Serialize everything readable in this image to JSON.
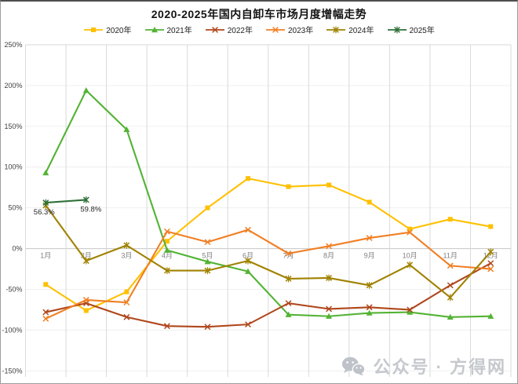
{
  "page": {
    "watermark_text": "公众号 · 方得网"
  },
  "chart_data": {
    "type": "line",
    "title": "2020-2025年国内自卸车市场月度增幅走势",
    "xlabel": "",
    "ylabel": "",
    "legend_position": "top",
    "grid": "vertical-major",
    "ylim": [
      -150,
      250
    ],
    "y_ticks": [
      "250%",
      "200%",
      "150%",
      "100%",
      "50%",
      "0%",
      "-50%",
      "-100%",
      "-150%"
    ],
    "y_tick_values": [
      250,
      200,
      150,
      100,
      50,
      0,
      -50,
      -100,
      -150
    ],
    "categories": [
      "1月",
      "2月",
      "3月",
      "4月",
      "5月",
      "6月",
      "7月",
      "8月",
      "9月",
      "10月",
      "11月",
      "12月"
    ],
    "series": [
      {
        "name": "2020年",
        "color": "#FFC000",
        "marker": "square",
        "values": [
          -44,
          -76,
          -53,
          9,
          50,
          86,
          76,
          78,
          57,
          24,
          36,
          27
        ]
      },
      {
        "name": "2021年",
        "color": "#53B334",
        "marker": "triangle",
        "values": [
          93,
          194,
          146,
          -2,
          -16,
          -28,
          -81,
          -83,
          -79,
          -78,
          -84,
          -83
        ]
      },
      {
        "name": "2022年",
        "color": "#B0471C",
        "marker": "x",
        "values": [
          -78,
          -67,
          -84,
          -95,
          -96,
          -93,
          -67,
          -74,
          -72,
          -75,
          -45,
          -18
        ]
      },
      {
        "name": "2023年",
        "color": "#F07F24",
        "marker": "x",
        "values": [
          -86,
          -63,
          -66,
          21,
          8,
          23,
          -6,
          3,
          13,
          20,
          -21,
          -25
        ]
      },
      {
        "name": "2024年",
        "color": "#A08200",
        "marker": "star",
        "values": [
          53,
          -15,
          4,
          -27,
          -27,
          -15,
          -37,
          -36,
          -45,
          -20,
          -60,
          -4
        ]
      },
      {
        "name": "2025年",
        "color": "#2E7038",
        "marker": "star",
        "values": [
          56.3,
          59.8
        ],
        "point_labels": [
          "56.3%",
          "59.8%"
        ]
      }
    ]
  }
}
